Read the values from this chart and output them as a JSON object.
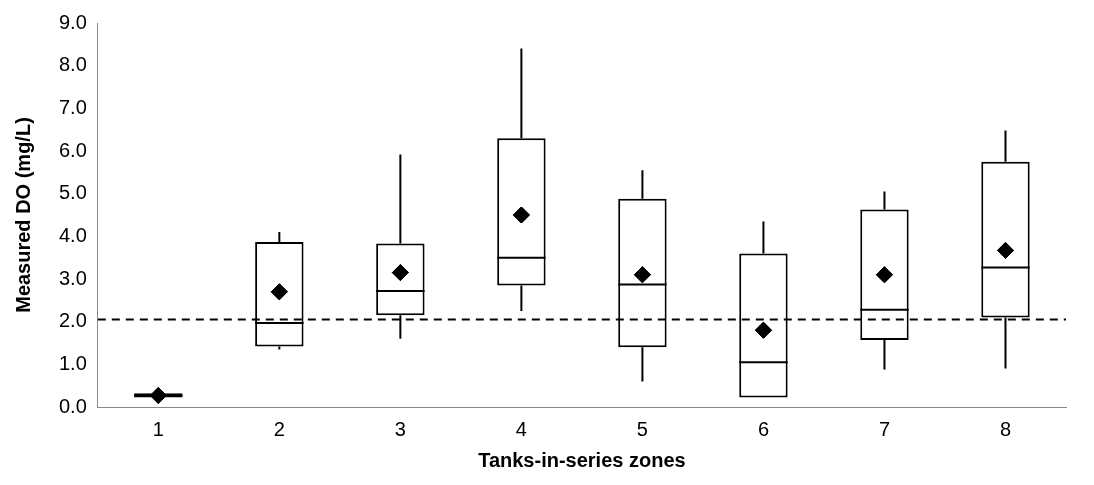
{
  "chart_data": {
    "type": "box",
    "xlabel": "Tanks-in-series zones",
    "ylabel": "Measured DO (mg/L)",
    "categories": [
      "1",
      "2",
      "3",
      "4",
      "5",
      "6",
      "7",
      "8"
    ],
    "boxes": [
      {
        "low": 0.22,
        "q1": 0.22,
        "median": 0.27,
        "q3": 0.32,
        "high": 0.32,
        "mean": 0.27
      },
      {
        "low": 1.35,
        "q1": 1.42,
        "median": 1.97,
        "q3": 3.87,
        "high": 4.1,
        "mean": 2.7
      },
      {
        "low": 1.6,
        "q1": 2.15,
        "median": 2.72,
        "q3": 3.83,
        "high": 5.92,
        "mean": 3.15
      },
      {
        "low": 2.25,
        "q1": 2.85,
        "median": 3.5,
        "q3": 6.3,
        "high": 8.4,
        "mean": 4.5
      },
      {
        "low": 0.6,
        "q1": 1.4,
        "median": 2.87,
        "q3": 4.88,
        "high": 5.55,
        "mean": 3.1
      },
      {
        "low": 0.22,
        "q1": 0.22,
        "median": 1.05,
        "q3": 3.6,
        "high": 4.35,
        "mean": 1.8
      },
      {
        "low": 0.88,
        "q1": 1.57,
        "median": 2.28,
        "q3": 4.63,
        "high": 5.05,
        "mean": 3.1
      },
      {
        "low": 0.9,
        "q1": 2.1,
        "median": 3.27,
        "q3": 5.75,
        "high": 6.48,
        "mean": 3.67
      }
    ],
    "color": "#000000",
    "marker": "diamond",
    "grid": false,
    "legend": false,
    "ylim": [
      0,
      9
    ],
    "yticks": [
      {
        "value": 0,
        "label": "0.0"
      },
      {
        "value": 1,
        "label": "1.0"
      },
      {
        "value": 2,
        "label": "2.0"
      },
      {
        "value": 3,
        "label": "3.0"
      },
      {
        "value": 4,
        "label": "4.0"
      },
      {
        "value": 5,
        "label": "5.0"
      },
      {
        "value": 6,
        "label": "6.0"
      },
      {
        "value": 7,
        "label": "7.0"
      },
      {
        "value": 8,
        "label": "8.0"
      },
      {
        "value": 9,
        "label": "9.0"
      }
    ],
    "ref_lines": [
      {
        "axis": "y",
        "value": 2.05,
        "line_style": "dashed",
        "color": "#000000"
      }
    ]
  }
}
